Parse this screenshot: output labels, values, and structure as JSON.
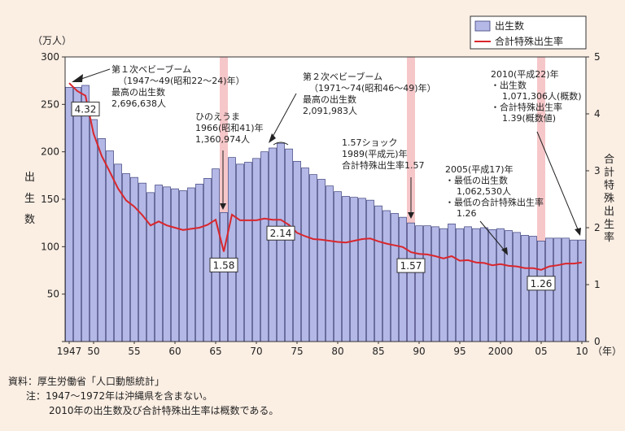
{
  "chart_data": {
    "type": "bar",
    "y_left_unit": "（万人）",
    "y_left_ticks": [
      0,
      50,
      100,
      150,
      200,
      250,
      300
    ],
    "y_left_ticks_labelled": [
      "50",
      "100",
      "150",
      "200",
      "250",
      "300"
    ],
    "y_left_label_chars": [
      "出",
      "生",
      "数"
    ],
    "ylim_left": [
      0,
      300
    ],
    "y_right_ticks": [
      "0",
      "1",
      "2",
      "3",
      "4",
      "5"
    ],
    "ylim_right": [
      0,
      5
    ],
    "y_right_label_chars": [
      "合",
      "計",
      "特",
      "殊",
      "出",
      "生",
      "率"
    ],
    "x_tick_labels": [
      {
        "year": 1947,
        "label": "1947"
      },
      {
        "year": 1950,
        "label": "50"
      },
      {
        "year": 1955,
        "label": "55"
      },
      {
        "year": 1960,
        "label": "60"
      },
      {
        "year": 1965,
        "label": "65"
      },
      {
        "year": 1970,
        "label": "70"
      },
      {
        "year": 1975,
        "label": "75"
      },
      {
        "year": 1980,
        "label": "80"
      },
      {
        "year": 1985,
        "label": "85"
      },
      {
        "year": 1990,
        "label": "90"
      },
      {
        "year": 1995,
        "label": "95"
      },
      {
        "year": 2000,
        "label": "2000"
      },
      {
        "year": 2005,
        "label": "05"
      },
      {
        "year": 2010,
        "label": "10"
      }
    ],
    "x_unit": "（年）",
    "years": [
      1947,
      1948,
      1949,
      1950,
      1951,
      1952,
      1953,
      1954,
      1955,
      1956,
      1957,
      1958,
      1959,
      1960,
      1961,
      1962,
      1963,
      1964,
      1965,
      1966,
      1967,
      1968,
      1969,
      1970,
      1971,
      1972,
      1973,
      1974,
      1975,
      1976,
      1977,
      1978,
      1979,
      1980,
      1981,
      1982,
      1983,
      1984,
      1985,
      1986,
      1987,
      1988,
      1989,
      1990,
      1991,
      1992,
      1993,
      1994,
      1995,
      1996,
      1997,
      1998,
      1999,
      2000,
      2001,
      2002,
      2003,
      2004,
      2005,
      2006,
      2007,
      2008,
      2009,
      2010
    ],
    "series": [
      {
        "name": "出生数",
        "kind": "bar",
        "color": "#b4b8e6",
        "values": [
          268,
          268,
          270,
          234,
          214,
          201,
          187,
          177,
          173,
          167,
          157,
          165,
          163,
          161,
          159,
          162,
          166,
          172,
          182,
          136,
          194,
          187,
          189,
          193,
          200,
          204,
          209,
          203,
          190,
          183,
          176,
          171,
          164,
          158,
          153,
          152,
          151,
          149,
          143,
          138,
          135,
          131,
          125,
          122,
          122,
          121,
          119,
          124,
          119,
          121,
          119,
          120,
          118,
          119,
          117,
          115,
          112,
          111,
          106,
          109,
          109,
          109,
          107,
          107
        ]
      },
      {
        "name": "合計特殊出生率",
        "kind": "line",
        "color": "#d9262c",
        "values": [
          4.54,
          4.4,
          4.32,
          3.65,
          3.26,
          2.98,
          2.69,
          2.48,
          2.37,
          2.22,
          2.04,
          2.11,
          2.04,
          2.0,
          1.96,
          1.98,
          2.0,
          2.05,
          2.14,
          1.58,
          2.23,
          2.13,
          2.13,
          2.13,
          2.16,
          2.14,
          2.14,
          2.05,
          1.91,
          1.85,
          1.8,
          1.79,
          1.77,
          1.75,
          1.74,
          1.77,
          1.8,
          1.81,
          1.76,
          1.72,
          1.69,
          1.66,
          1.57,
          1.54,
          1.53,
          1.5,
          1.46,
          1.5,
          1.42,
          1.43,
          1.39,
          1.38,
          1.34,
          1.36,
          1.33,
          1.32,
          1.29,
          1.29,
          1.26,
          1.32,
          1.34,
          1.37,
          1.37,
          1.39
        ]
      }
    ],
    "highlight_years": [
      1966,
      1989,
      2005
    ],
    "legend": {
      "position": "top-right",
      "items": [
        "出生数",
        "合計特殊出生率"
      ]
    },
    "tfr_boxes": [
      {
        "year": 1949,
        "label": "4.32"
      },
      {
        "year": 1966,
        "label": "1.58"
      },
      {
        "year": 1973,
        "label": "2.14"
      },
      {
        "year": 1989,
        "label": "1.57"
      },
      {
        "year": 2005,
        "label": "1.26"
      }
    ],
    "annotations": [
      {
        "key": "baby1",
        "lines": [
          "第１次ベビーブーム",
          "（1947～49(昭和22～24)年）",
          "最高の出生数",
          "2,696,638人"
        ]
      },
      {
        "key": "hinoe",
        "lines": [
          "ひのえうま",
          "1966(昭和41)年",
          "1,360,974人"
        ]
      },
      {
        "key": "baby2",
        "lines": [
          "第２次ベビーブーム",
          "（1971～74(昭和46～49)年）",
          "最高の出生数",
          "2,091,983人"
        ]
      },
      {
        "key": "shock",
        "lines": [
          "1.57ショック",
          "1989(平成元)年",
          "合計特殊出生率1.57"
        ]
      },
      {
        "key": "low2005",
        "lines": [
          "2005(平成17)年",
          "・最低の出生数",
          "1,062,530人",
          "・最低の合計特殊出生率",
          "1.26"
        ]
      },
      {
        "key": "y2010",
        "lines": [
          "2010(平成22)年",
          "・出生数",
          "1,071,306人(概数)",
          "・合計特殊出生率",
          "1.39(概数値)"
        ]
      }
    ]
  },
  "footnotes": {
    "source": "資料：厚生労働省「人口動態統計」",
    "note1": "注：1947～1972年は沖縄県を含まない。",
    "note2": "2010年の出生数及び合計特殊出生率は概数である。"
  }
}
